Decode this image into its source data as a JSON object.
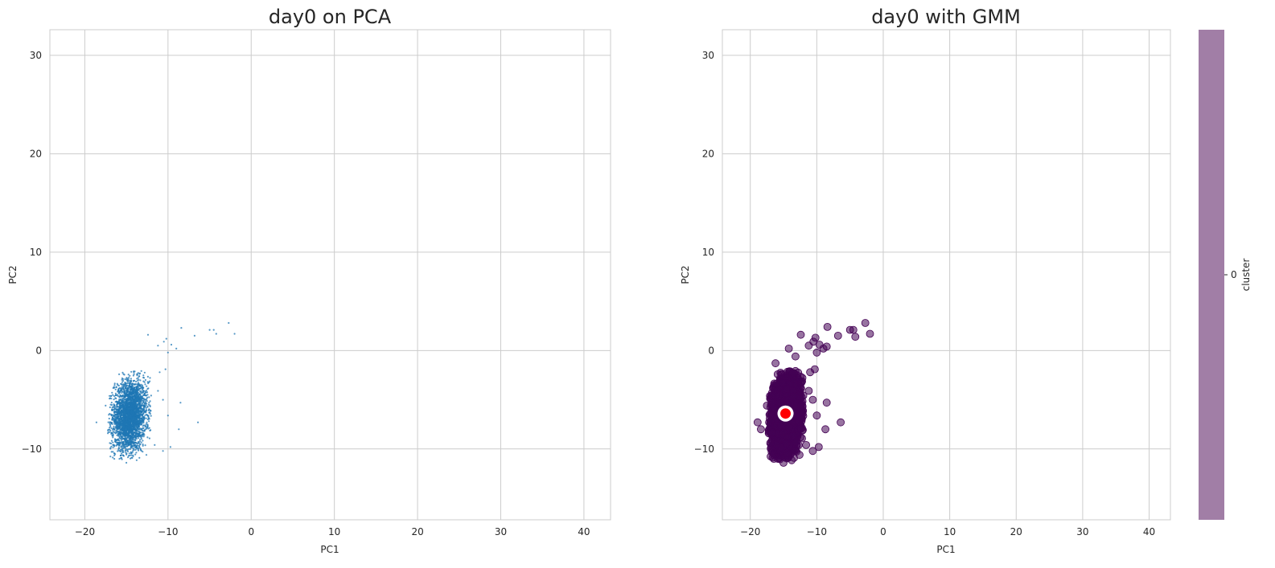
{
  "chart_data": [
    {
      "type": "scatter",
      "title": "day0 on PCA",
      "xlabel": "PC1",
      "ylabel": "PC2",
      "xlim": [
        -24.2,
        43.2
      ],
      "ylim": [
        -17.2,
        32.6
      ],
      "xticks": [
        -20,
        -10,
        0,
        10,
        20,
        30,
        40
      ],
      "yticks": [
        -10,
        0,
        10,
        20,
        30
      ],
      "grid": true,
      "marker_color": "#1f77b4",
      "cloud": {
        "center": [
          -14.6,
          -6.6
        ],
        "sd": [
          1.0,
          1.75
        ],
        "count": 3000
      },
      "series": [
        {
          "points": [
            [
              -2.7,
              2.8
            ],
            [
              -2.0,
              1.7
            ],
            [
              -4.2,
              1.7
            ],
            [
              -4.5,
              2.1
            ],
            [
              -5.0,
              2.1
            ],
            [
              -6.8,
              1.5
            ],
            [
              -8.4,
              2.3
            ],
            [
              -10.2,
              1.2
            ],
            [
              -9.6,
              0.6
            ],
            [
              -10.5,
              0.9
            ],
            [
              -9.0,
              0.2
            ],
            [
              -11.2,
              0.5
            ],
            [
              -12.4,
              1.6
            ],
            [
              -10.0,
              -0.2
            ],
            [
              -10.3,
              -1.9
            ],
            [
              -11.0,
              -2.2
            ],
            [
              -8.5,
              -5.3
            ],
            [
              -6.4,
              -7.3
            ],
            [
              -9.7,
              -9.8
            ],
            [
              -8.7,
              -8.0
            ],
            [
              -10.6,
              -10.2
            ],
            [
              -11.6,
              -9.6
            ],
            [
              -17.0,
              -9.4
            ],
            [
              -18.6,
              -7.3
            ],
            [
              -15.0,
              -11.4
            ],
            [
              -12.6,
              -10.6
            ],
            [
              -10.6,
              -5.0
            ],
            [
              -11.2,
              -4.1
            ],
            [
              -10.0,
              -6.6
            ],
            [
              -17.5,
              -5.6
            ]
          ]
        }
      ]
    },
    {
      "type": "scatter",
      "title": "day0 with GMM",
      "xlabel": "PC1",
      "ylabel": "PC2",
      "xlim": [
        -24.2,
        43.2
      ],
      "ylim": [
        -17.2,
        32.6
      ],
      "xticks": [
        -20,
        -10,
        0,
        10,
        20,
        30,
        40
      ],
      "yticks": [
        -10,
        0,
        10,
        20,
        30
      ],
      "grid": true,
      "marker_color": "#440154",
      "cloud": {
        "center": [
          -14.6,
          -6.6
        ],
        "sd": [
          1.0,
          1.75
        ],
        "count": 3000
      },
      "series": [
        {
          "name": "0",
          "points": [
            [
              -2.7,
              2.8
            ],
            [
              -2.0,
              1.7
            ],
            [
              -4.2,
              1.4
            ],
            [
              -4.5,
              2.1
            ],
            [
              -5.0,
              2.1
            ],
            [
              -6.8,
              1.5
            ],
            [
              -8.4,
              2.4
            ],
            [
              -8.5,
              0.4
            ],
            [
              -10.2,
              1.3
            ],
            [
              -9.6,
              0.6
            ],
            [
              -10.5,
              0.9
            ],
            [
              -9.0,
              0.2
            ],
            [
              -11.2,
              0.5
            ],
            [
              -12.4,
              1.6
            ],
            [
              -10.0,
              -0.2
            ],
            [
              -10.3,
              -1.9
            ],
            [
              -11.0,
              -2.2
            ],
            [
              -8.5,
              -5.3
            ],
            [
              -6.4,
              -7.3
            ],
            [
              -9.7,
              -9.8
            ],
            [
              -8.7,
              -8.0
            ],
            [
              -10.6,
              -10.2
            ],
            [
              -11.6,
              -9.6
            ],
            [
              -18.9,
              -7.3
            ],
            [
              -18.4,
              -8.0
            ],
            [
              -17.0,
              -9.4
            ],
            [
              -15.0,
              -11.4
            ],
            [
              -12.6,
              -10.6
            ],
            [
              -10.6,
              -5.0
            ],
            [
              -11.2,
              -4.1
            ],
            [
              -10.0,
              -6.6
            ],
            [
              -17.5,
              -5.6
            ],
            [
              -16.2,
              -1.3
            ],
            [
              -14.2,
              0.2
            ],
            [
              -13.2,
              -0.6
            ]
          ]
        }
      ],
      "centroid": {
        "x": -14.7,
        "y": -6.4,
        "color": "#ff0000"
      },
      "colorbar": {
        "label": "cluster",
        "ticks": [
          "0"
        ],
        "color": "#a17ea6"
      }
    }
  ]
}
